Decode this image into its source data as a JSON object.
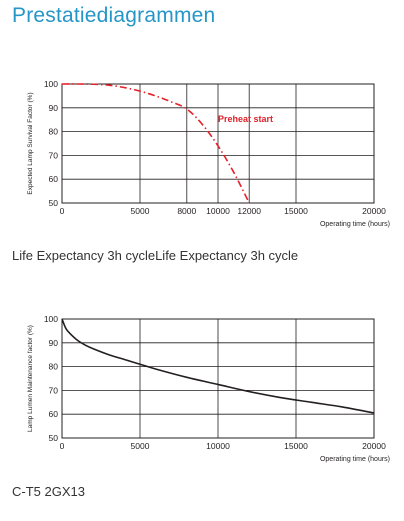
{
  "page_title": "Prestatiediagrammen",
  "captions": {
    "first": "Life Expectancy 3h cycleLife Expectancy 3h cycle",
    "second": "C-T5 2GX13"
  },
  "colors": {
    "title": "#2596c8",
    "curve_red": "#e32129",
    "curve_black": "#231f20",
    "grid": "#231f20"
  },
  "chart_data": [
    {
      "type": "line",
      "ylabel": "Expected Lamp Survival Factor (%)",
      "xlabel": "Operating time (hours)",
      "xlim": [
        0,
        20000
      ],
      "ylim": [
        50,
        100
      ],
      "x_ticks": [
        0,
        5000,
        8000,
        10000,
        12000,
        15000,
        20000
      ],
      "x_tick_labels": [
        "0",
        "5000",
        "8000",
        "10000",
        "12000",
        "15000",
        "20000"
      ],
      "y_ticks": [
        50,
        60,
        70,
        80,
        90,
        100
      ],
      "y_tick_labels": [
        "50",
        "60",
        "70",
        "80",
        "90",
        "100"
      ],
      "grid": true,
      "series": [
        {
          "name": "Preheat start",
          "style": "dash-dot",
          "color": "#e32129",
          "x": [
            0,
            1000,
            2000,
            3000,
            4000,
            5000,
            6000,
            7000,
            8000,
            9000,
            10000,
            11000,
            12000
          ],
          "y": [
            100,
            100,
            99.9,
            99.5,
            98.5,
            97,
            95,
            92.5,
            89.5,
            83,
            74,
            63,
            50
          ]
        }
      ]
    },
    {
      "type": "line",
      "ylabel": "Lamp Lumen Maintenance factor (%)",
      "xlabel": "Operating time (hours)",
      "xlim": [
        0,
        20000
      ],
      "ylim": [
        50,
        100
      ],
      "x_ticks": [
        0,
        5000,
        10000,
        15000,
        20000
      ],
      "x_tick_labels": [
        "0",
        "5000",
        "10000",
        "15000",
        "20000"
      ],
      "y_ticks": [
        50,
        60,
        70,
        80,
        90,
        100
      ],
      "y_tick_labels": [
        "50",
        "60",
        "70",
        "80",
        "90",
        "100"
      ],
      "grid": true,
      "series": [
        {
          "style": "solid",
          "color": "#231f20",
          "x": [
            0,
            250,
            500,
            1000,
            1500,
            2000,
            3000,
            4000,
            5000,
            6000,
            8000,
            10000,
            12000,
            14000,
            16000,
            18000,
            20000
          ],
          "y": [
            100,
            96,
            94,
            91,
            89,
            87.5,
            85,
            83,
            81,
            79,
            75.5,
            72.5,
            69.5,
            67,
            65,
            63,
            60.5
          ]
        }
      ]
    }
  ]
}
